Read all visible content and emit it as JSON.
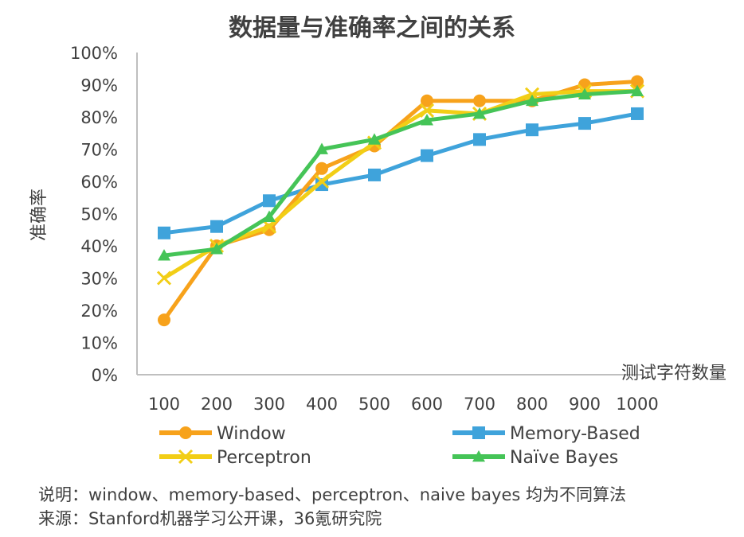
{
  "chart_data": {
    "type": "line",
    "title": "数据量与准确率之间的关系",
    "xlabel": "测试字符数量",
    "ylabel": "准确率",
    "categories": [
      "100",
      "200",
      "300",
      "400",
      "500",
      "600",
      "700",
      "800",
      "900",
      "1000"
    ],
    "y_ticks": [
      "0%",
      "10%",
      "20%",
      "30%",
      "40%",
      "50%",
      "60%",
      "70%",
      "80%",
      "90%",
      "100%"
    ],
    "ylim": [
      0,
      100
    ],
    "legend_position": "bottom",
    "series": [
      {
        "name": "Window",
        "color": "#F7A21B",
        "marker": "circle",
        "values": [
          17,
          40,
          45,
          64,
          71,
          85,
          85,
          85,
          90,
          91
        ]
      },
      {
        "name": "Memory-Based",
        "color": "#3FA3DB",
        "marker": "square",
        "values": [
          44,
          46,
          54,
          59,
          62,
          68,
          73,
          76,
          78,
          81
        ]
      },
      {
        "name": "Perceptron",
        "color": "#F2CE16",
        "marker": "x",
        "values": [
          30,
          40,
          46,
          60,
          72,
          82,
          81,
          87,
          88,
          88
        ]
      },
      {
        "name": "Naïve Bayes",
        "color": "#45C457",
        "marker": "triangle",
        "values": [
          37,
          39,
          49,
          70,
          73,
          79,
          81,
          85,
          87,
          88
        ]
      }
    ]
  },
  "notes": {
    "line1": "说明：window、memory-based、perceptron、naive bayes 均为不同算法",
    "line2": "来源：Stanford机器学习公开课，36氪研究院"
  }
}
